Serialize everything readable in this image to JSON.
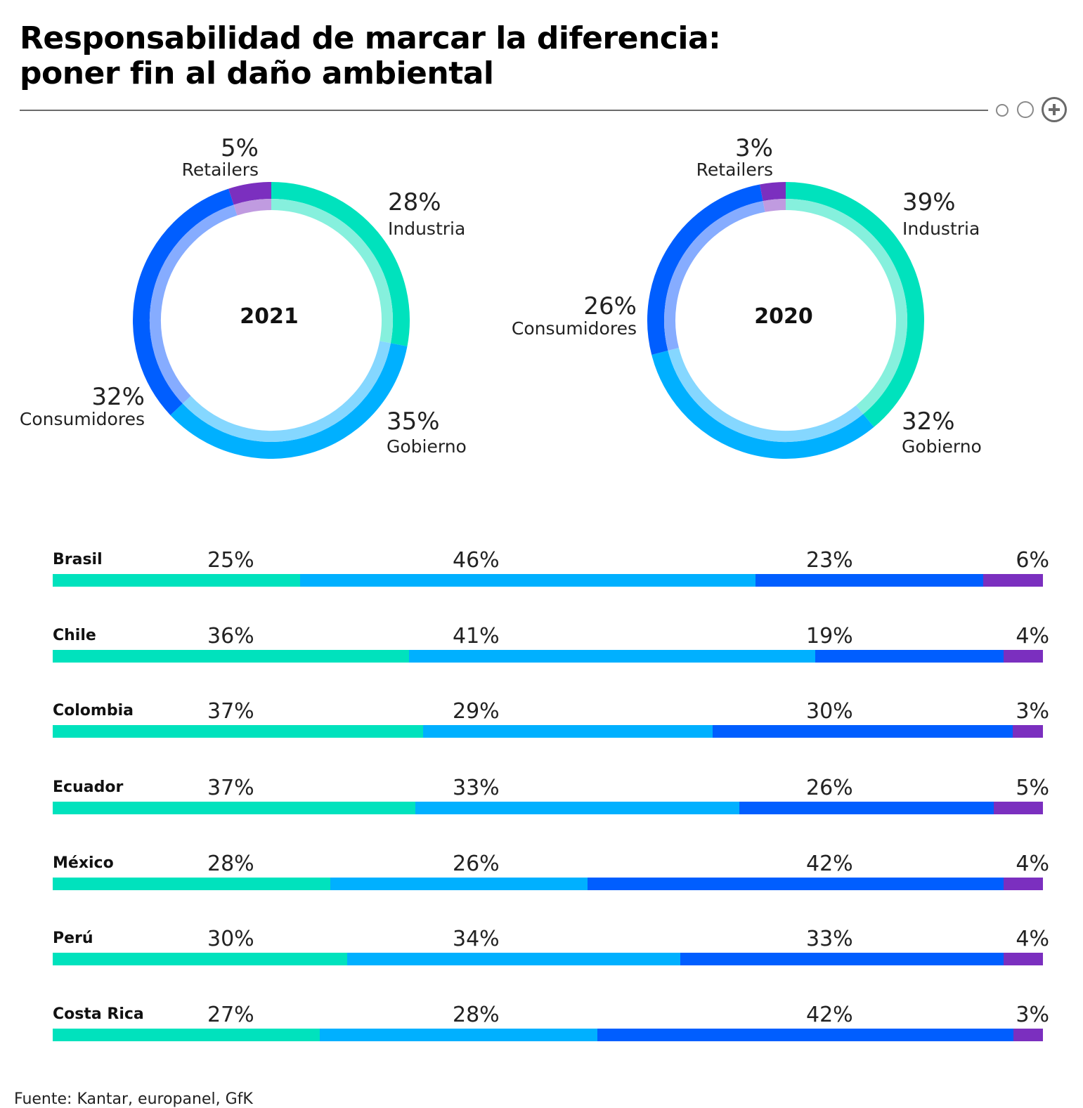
{
  "header": {
    "title_line1": "Responsabilidad de marcar la diferencia:",
    "title_line2": "poner fin al daño ambiental"
  },
  "colors": {
    "industria": "#00e2bd",
    "gobierno": "#00b0ff",
    "consumidores": "#005eff",
    "retailers": "#7b2fbf",
    "industria_light": "#86f0dd",
    "gobierno_light": "#85d7ff",
    "consumidores_light": "#86acff",
    "retailers_light": "#c09be0"
  },
  "chart_data": [
    {
      "type": "pie",
      "center_label": "2021",
      "slices": [
        {
          "label": "Industria",
          "value": 28,
          "pct_label": "28%"
        },
        {
          "label": "Gobierno",
          "value": 35,
          "pct_label": "35%"
        },
        {
          "label": "Consumidores",
          "value": 32,
          "pct_label": "32%"
        },
        {
          "label": "Retailers",
          "value": 5,
          "pct_label": "5%"
        }
      ]
    },
    {
      "type": "pie",
      "center_label": "2020",
      "slices": [
        {
          "label": "Industria",
          "value": 39,
          "pct_label": "39%"
        },
        {
          "label": "Gobierno",
          "value": 32,
          "pct_label": "32%"
        },
        {
          "label": "Consumidores",
          "value": 26,
          "pct_label": "26%"
        },
        {
          "label": "Retailers",
          "value": 3,
          "pct_label": "3%"
        }
      ]
    },
    {
      "type": "bar",
      "stacked": true,
      "orientation": "horizontal",
      "categories": [
        "Brasil",
        "Chile",
        "Colombia",
        "Ecuador",
        "México",
        "Perú",
        "Costa Rica"
      ],
      "series": [
        {
          "segment": "industria",
          "values": [
            25,
            36,
            37,
            37,
            28,
            30,
            27
          ],
          "labels": [
            "25%",
            "36%",
            "37%",
            "37%",
            "28%",
            "30%",
            "27%"
          ]
        },
        {
          "segment": "gobierno",
          "values": [
            46,
            41,
            29,
            33,
            26,
            34,
            28
          ],
          "labels": [
            "46%",
            "41%",
            "29%",
            "33%",
            "26%",
            "34%",
            "28%"
          ]
        },
        {
          "segment": "consumidores",
          "values": [
            23,
            19,
            30,
            26,
            42,
            33,
            42
          ],
          "labels": [
            "23%",
            "19%",
            "30%",
            "26%",
            "42%",
            "33%",
            "42%"
          ]
        },
        {
          "segment": "retailers",
          "values": [
            6,
            4,
            3,
            5,
            4,
            4,
            3
          ],
          "labels": [
            "6%",
            "4%",
            "3%",
            "5%",
            "4%",
            "4%",
            "3%"
          ]
        }
      ]
    }
  ],
  "source": "Fuente: Kantar, europanel, GfK"
}
